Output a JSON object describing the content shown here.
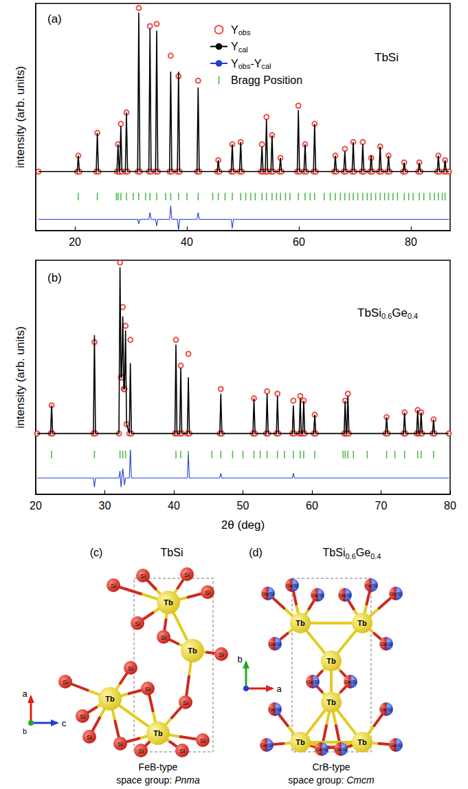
{
  "chart_data": [
    {
      "type": "scatter",
      "panel": "(a)",
      "annotation": "TbSi",
      "ylabel": "intensity (arb. units)",
      "xlim": [
        13,
        87
      ],
      "xticks": [
        20,
        40,
        60,
        80
      ],
      "ylim": [
        0,
        100
      ],
      "tick_labels": "x",
      "legend": "top",
      "x": [
        13.5,
        20.4,
        20.6,
        20.8,
        23.8,
        24.0,
        24.2,
        27.5,
        27.7,
        27.9,
        28.0,
        28.2,
        28.4,
        29.0,
        29.2,
        29.4,
        31.2,
        31.4,
        31.6,
        33.2,
        33.4,
        33.6,
        34.4,
        34.6,
        34.8,
        36.9,
        37.1,
        37.3,
        38.3,
        38.5,
        38.7,
        41.8,
        42.0,
        42.2,
        45.4,
        45.6,
        45.8,
        47.9,
        48.1,
        48.3,
        49.4,
        49.6,
        49.8,
        53.2,
        53.4,
        53.6,
        54.0,
        54.2,
        54.4,
        55.0,
        55.2,
        55.4,
        56.5,
        56.7,
        56.9,
        59.7,
        59.9,
        60.1,
        60.9,
        61.1,
        61.3,
        62.6,
        62.8,
        63.0,
        66.3,
        66.5,
        66.7,
        68.0,
        68.2,
        68.4,
        69.5,
        69.7,
        69.9,
        71.2,
        71.4,
        71.6,
        72.7,
        72.9,
        73.1,
        74.3,
        74.5,
        74.7,
        75.8,
        76.0,
        76.2,
        78.6,
        78.8,
        79.0,
        81.3,
        81.5,
        81.7,
        84.7,
        84.9,
        85.1,
        85.9,
        86.1,
        86.3,
        86.8
      ],
      "series": [
        {
          "name": "Yobs",
          "type": "scatter",
          "marker": "circle",
          "color": "#e8261c",
          "values": [
            26,
            26,
            33,
            26,
            26,
            43,
            26,
            26,
            38,
            26,
            26,
            47,
            26,
            26,
            52,
            26,
            26,
            98,
            26,
            26,
            90,
            26,
            26,
            91,
            26,
            26,
            77,
            26,
            26,
            68,
            26,
            26,
            66,
            26,
            26,
            31,
            26,
            26,
            38,
            26,
            26,
            39,
            26,
            26,
            38,
            26,
            26,
            50,
            26,
            26,
            42,
            26,
            26,
            32,
            26,
            26,
            55,
            26,
            26,
            38,
            26,
            26,
            47,
            26,
            26,
            33,
            26,
            26,
            36,
            26,
            26,
            39,
            26,
            26,
            39,
            26,
            26,
            32,
            26,
            26,
            37,
            26,
            26,
            33,
            26,
            26,
            30,
            26,
            26,
            30,
            26,
            26,
            33,
            26,
            26,
            31,
            26,
            26
          ]
        },
        {
          "name": "Ycal",
          "type": "line",
          "line_style": "solid",
          "color": "#000000",
          "values": [
            26,
            26,
            33,
            26,
            26,
            43,
            26,
            26,
            38,
            26,
            26,
            46,
            26,
            26,
            52,
            26,
            26,
            96,
            26,
            26,
            89,
            26,
            26,
            88,
            26,
            26,
            70,
            26,
            26,
            70,
            26,
            26,
            63,
            26,
            26,
            31,
            26,
            26,
            38,
            26,
            26,
            39,
            26,
            26,
            37,
            26,
            26,
            49,
            26,
            26,
            42,
            26,
            26,
            32,
            26,
            26,
            53,
            26,
            26,
            38,
            26,
            26,
            47,
            26,
            26,
            33,
            26,
            26,
            35,
            26,
            26,
            39,
            26,
            26,
            38,
            26,
            26,
            33,
            26,
            26,
            37,
            26,
            26,
            33,
            26,
            26,
            30,
            26,
            26,
            30,
            26,
            26,
            33,
            26,
            26,
            31,
            26,
            26
          ]
        },
        {
          "name": "Yobs-Ycal",
          "type": "line",
          "line_style": "solid",
          "color": "#1f3fd6",
          "x": [
            13.5,
            31.2,
            31.4,
            31.6,
            33.2,
            33.4,
            33.6,
            34.4,
            34.6,
            34.8,
            36.9,
            37.1,
            37.3,
            38.3,
            38.5,
            38.7,
            41.8,
            42.0,
            42.2,
            47.9,
            48.1,
            48.3,
            86.8
          ],
          "values": [
            5,
            5,
            3,
            5,
            5,
            8,
            5,
            5,
            2,
            5,
            5,
            11,
            5,
            5,
            0,
            5,
            5,
            8,
            5,
            5,
            1,
            5,
            5
          ]
        },
        {
          "name": "Bragg Position",
          "type": "scatter",
          "marker": "|",
          "color": "#22aa22",
          "x": [
            20.6,
            24.0,
            27.4,
            27.7,
            28.2,
            29.2,
            30.4,
            31.4,
            32.6,
            33.4,
            34.6,
            36.2,
            37.1,
            38.5,
            40.0,
            42.0,
            44.6,
            45.6,
            46.8,
            48.1,
            49.6,
            50.5,
            51.4,
            52.2,
            53.4,
            54.2,
            55.2,
            56.0,
            56.7,
            57.6,
            58.4,
            59.9,
            61.1,
            62.0,
            62.8,
            64.5,
            65.6,
            66.5,
            67.4,
            68.2,
            69.0,
            69.7,
            70.5,
            71.4,
            72.2,
            72.9,
            73.7,
            74.5,
            75.3,
            76.0,
            76.8,
            77.6,
            78.8,
            79.6,
            80.4,
            81.5,
            82.3,
            83.4,
            84.2,
            84.9,
            85.6,
            86.1
          ],
          "values": [
            15,
            15,
            15,
            15,
            15,
            15,
            15,
            15,
            15,
            15,
            15,
            15,
            15,
            15,
            15,
            15,
            15,
            15,
            15,
            15,
            15,
            15,
            15,
            15,
            15,
            15,
            15,
            15,
            15,
            15,
            15,
            15,
            15,
            15,
            15,
            15,
            15,
            15,
            15,
            15,
            15,
            15,
            15,
            15,
            15,
            15,
            15,
            15,
            15,
            15,
            15,
            15,
            15,
            15,
            15,
            15,
            15,
            15,
            15,
            15,
            15,
            15
          ]
        }
      ]
    },
    {
      "type": "scatter",
      "panel": "(b)",
      "annotation": "TbSi0.6Ge0.4",
      "ylabel": "intensity (arb. units)",
      "xlabel": "2θ (deg)",
      "xlim": [
        20,
        80
      ],
      "xticks": [
        20,
        30,
        40,
        50,
        60,
        70,
        80
      ],
      "ylim": [
        0,
        100
      ],
      "tick_labels": "x",
      "x": [
        20.2,
        22.15,
        22.3,
        22.45,
        28.35,
        28.5,
        28.65,
        32.05,
        32.2,
        32.35,
        32.45,
        32.6,
        32.75,
        32.85,
        33.0,
        33.15,
        33.55,
        33.7,
        33.85,
        40.15,
        40.3,
        40.45,
        40.85,
        41.0,
        41.15,
        41.95,
        42.1,
        42.25,
        46.65,
        46.8,
        46.95,
        51.45,
        51.6,
        51.75,
        53.35,
        53.5,
        53.65,
        54.85,
        55.0,
        55.15,
        57.15,
        57.3,
        57.45,
        58.15,
        58.3,
        58.45,
        58.65,
        58.8,
        58.95,
        60.25,
        60.4,
        60.55,
        64.65,
        64.8,
        64.95,
        65.05,
        65.2,
        65.35,
        70.65,
        70.8,
        70.95,
        73.25,
        73.4,
        73.55,
        75.15,
        75.3,
        75.45,
        75.65,
        75.8,
        75.95,
        77.45,
        77.6,
        77.75,
        79.8
      ],
      "series": [
        {
          "name": "Yobs",
          "type": "scatter",
          "marker": "circle",
          "color": "#e8261c",
          "values": [
            26,
            26,
            38,
            26,
            26,
            65,
            26,
            26,
            99,
            50,
            50,
            80,
            45,
            45,
            72,
            30,
            26,
            66,
            26,
            26,
            66,
            26,
            26,
            55,
            26,
            26,
            60,
            26,
            26,
            45,
            26,
            26,
            41,
            26,
            26,
            44,
            26,
            26,
            43,
            26,
            26,
            40,
            26,
            26,
            42,
            26,
            26,
            40,
            26,
            26,
            34,
            26,
            26,
            40,
            26,
            26,
            43,
            26,
            26,
            33,
            26,
            26,
            35,
            26,
            26,
            36,
            26,
            26,
            35,
            26,
            26,
            32,
            26,
            26
          ]
        },
        {
          "name": "Ycal",
          "type": "line",
          "line_style": "solid",
          "color": "#000000",
          "values": [
            26,
            26,
            38,
            26,
            26,
            68,
            26,
            26,
            97,
            50,
            50,
            76,
            45,
            45,
            70,
            30,
            26,
            56,
            26,
            26,
            64,
            26,
            26,
            54,
            26,
            26,
            50,
            26,
            26,
            43,
            26,
            26,
            41,
            26,
            26,
            43,
            26,
            26,
            42,
            26,
            26,
            38,
            26,
            26,
            41,
            26,
            26,
            40,
            26,
            26,
            34,
            26,
            26,
            40,
            26,
            26,
            42,
            26,
            26,
            33,
            26,
            26,
            35,
            26,
            26,
            36,
            26,
            26,
            35,
            26,
            26,
            32,
            26,
            26
          ]
        },
        {
          "name": "Yobs-Ycal",
          "type": "line",
          "line_style": "solid",
          "color": "#1f3fd6",
          "x": [
            20.2,
            28.35,
            28.5,
            28.65,
            32.05,
            32.2,
            32.35,
            32.6,
            32.85,
            33.0,
            33.55,
            33.7,
            33.85,
            41.95,
            42.1,
            42.25,
            46.65,
            46.8,
            46.95,
            57.15,
            57.3,
            57.45,
            79.8
          ],
          "values": [
            7,
            7,
            3,
            7,
            7,
            10,
            3,
            11,
            4,
            7,
            7,
            19,
            7,
            7,
            17,
            7,
            7,
            9,
            7,
            7,
            9,
            7,
            7
          ]
        },
        {
          "name": "Bragg Position",
          "type": "scatter",
          "marker": "|",
          "color": "#22aa22",
          "x": [
            22.3,
            28.5,
            32.2,
            32.6,
            33.0,
            33.7,
            40.3,
            41.0,
            42.1,
            45.5,
            46.8,
            48.5,
            50.0,
            51.6,
            52.5,
            53.5,
            55.0,
            56.0,
            57.3,
            58.3,
            58.8,
            60.4,
            64.5,
            64.8,
            65.2,
            66.0,
            68.0,
            70.8,
            72.0,
            73.4,
            75.3,
            75.8,
            77.6
          ],
          "values": [
            17,
            17,
            17,
            17,
            17,
            17,
            17,
            17,
            17,
            17,
            17,
            17,
            17,
            17,
            17,
            17,
            17,
            17,
            17,
            17,
            17,
            17,
            17,
            17,
            17,
            17,
            17,
            17,
            17,
            17,
            17,
            17,
            17
          ]
        }
      ]
    }
  ],
  "structures": [
    {
      "panel": "(c)",
      "title": "TbSi",
      "structure_type": "FeB-type",
      "space_group_label": "space group:",
      "space_group": "Pnma",
      "atoms": [
        "Tb",
        "Si"
      ],
      "axes": [
        "a",
        "c",
        "b"
      ]
    },
    {
      "panel": "(d)",
      "title": "TbSi0.6Ge0.4",
      "structure_type": "CrB-type",
      "space_group_label": "space group:",
      "space_group": "Cmcm",
      "atoms": [
        "Tb",
        "Ge/Si"
      ],
      "axes": [
        "b",
        "a"
      ]
    }
  ]
}
